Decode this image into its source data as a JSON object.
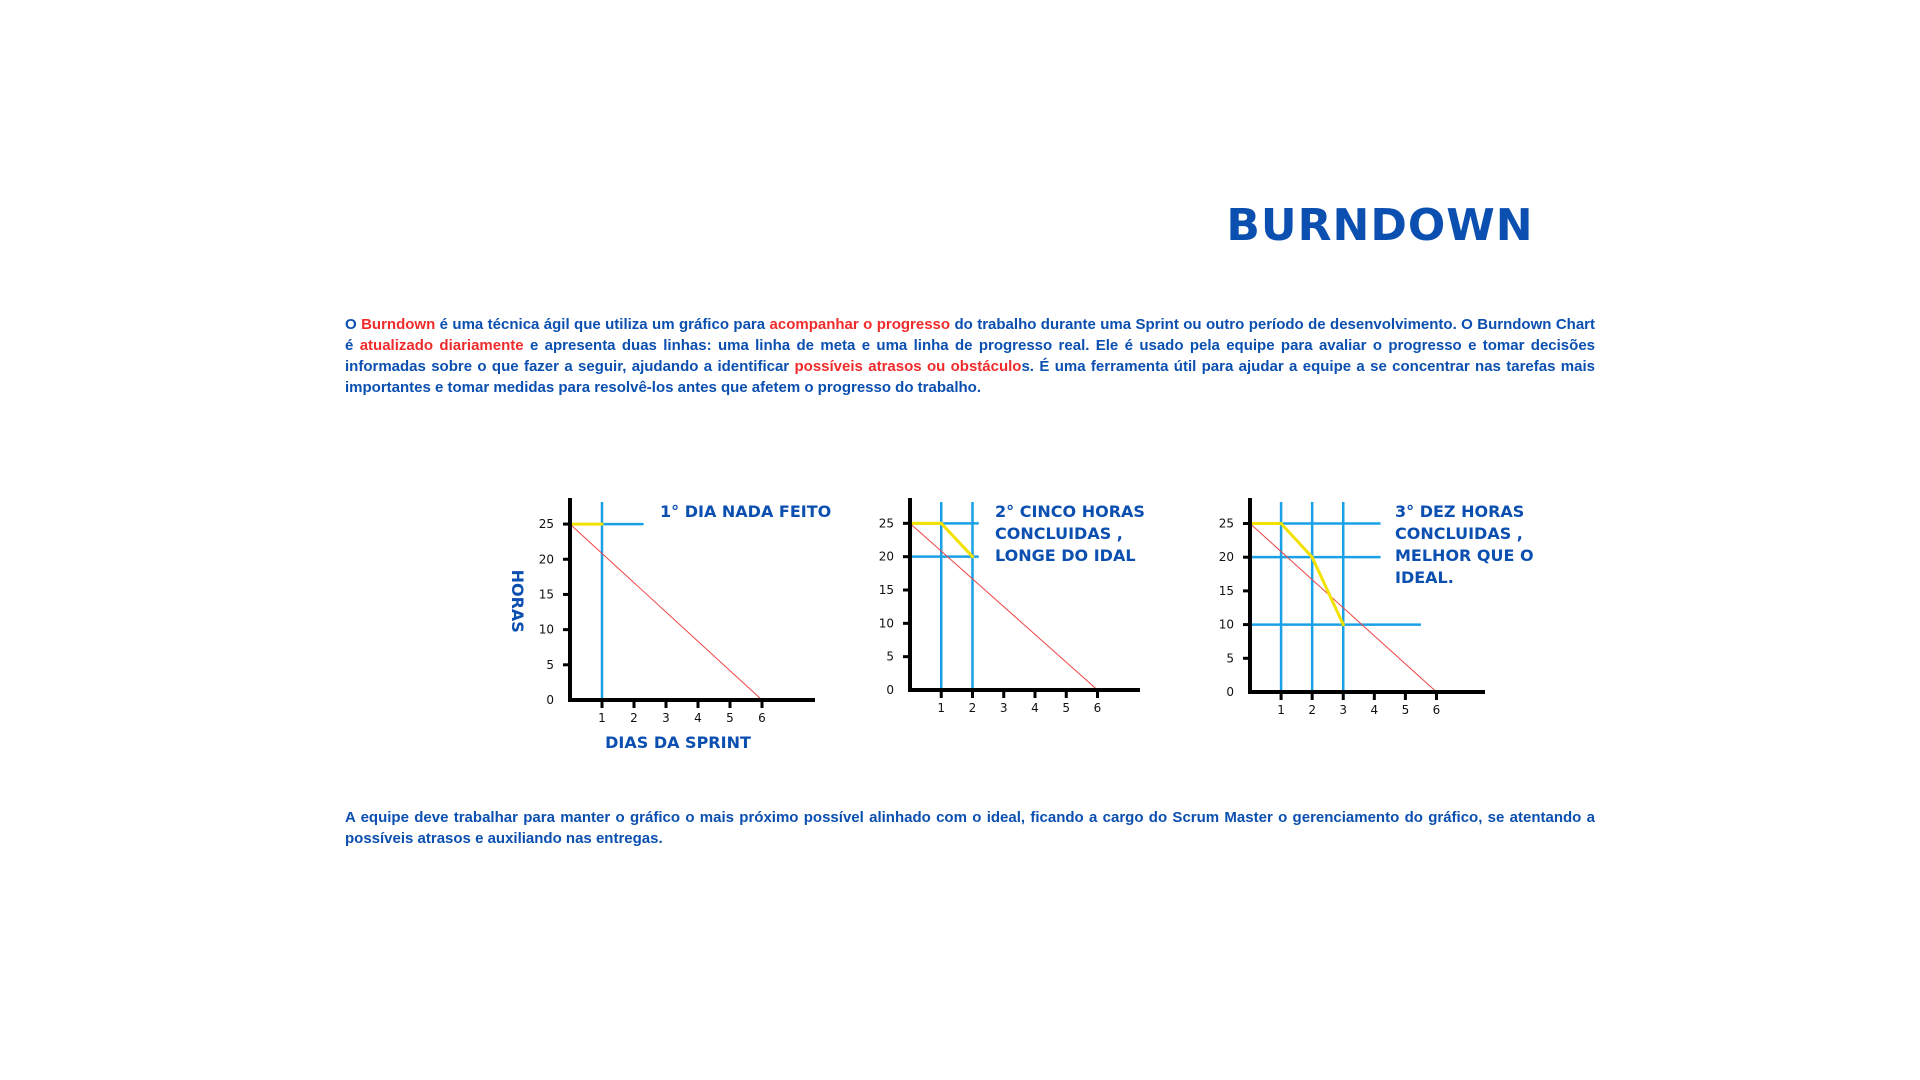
{
  "title": "BURNDOWN",
  "intro": [
    {
      "text": "O ",
      "highlight": false
    },
    {
      "text": "Burndown",
      "highlight": true
    },
    {
      "text": " é uma técnica ágil que utiliza um gráfico para ",
      "highlight": false
    },
    {
      "text": "acompanhar o progresso",
      "highlight": true
    },
    {
      "text": " do trabalho durante uma Sprint ou outro período de desenvolvimento. O Burndown Chart é ",
      "highlight": false
    },
    {
      "text": "atualizado diariamente",
      "highlight": true
    },
    {
      "text": " e apresenta duas linhas: uma linha de meta e uma linha de progresso real. Ele é usado pela equipe para avaliar o progresso e tomar decisões informadas sobre o que fazer a seguir, ajudando a identificar ",
      "highlight": false
    },
    {
      "text": "possíveis atrasos ou obstáculo",
      "highlight": true
    },
    {
      "text": "s. É uma ferramenta útil para ajudar a equipe a se concentrar nas tarefas mais importantes e tomar medidas para resolvê-los antes que afetem o progresso do trabalho.",
      "highlight": false
    }
  ],
  "outro": "A equipe deve trabalhar para manter o gráfico o mais próximo possível alinhado com o ideal, ficando a cargo do Scrum Master o gerenciamento do gráfico, se atentando a possíveis atrasos e auxiliando nas entregas.",
  "colors": {
    "text_blue": "#0b4fb0",
    "highlight_red": "#ef2b2b",
    "guide_blue": "#1aa0e6",
    "actual_yellow": "#f3e200",
    "ideal_red": "#ef4444",
    "axis_black": "#000000"
  },
  "chart_data": [
    {
      "type": "line",
      "caption": [
        "1° DIA NADA FEITO"
      ],
      "xlabel": "DIAS DA SPRINT",
      "ylabel": "HORAS",
      "x_ticks": [
        "1",
        "2",
        "3",
        "4",
        "5",
        "6"
      ],
      "y_ticks": [
        "0",
        "5",
        "10",
        "15",
        "20",
        "25"
      ],
      "xlim": [
        0,
        7.5
      ],
      "ylim": [
        0,
        27
      ],
      "series": [
        {
          "role": "ideal",
          "points": [
            [
              0,
              25
            ],
            [
              6,
              0
            ]
          ]
        },
        {
          "role": "actual",
          "points": [
            [
              0,
              25
            ],
            [
              1,
              25
            ]
          ]
        }
      ],
      "guides": {
        "x": [
          1
        ],
        "y": [
          {
            "y": 25,
            "to_x": 2.3
          }
        ]
      }
    },
    {
      "type": "line",
      "caption": [
        "2° CINCO HORAS",
        "CONCLUIDAS ,",
        "LONGE DO IDAL"
      ],
      "xlabel": "",
      "ylabel": "",
      "x_ticks": [
        "1",
        "2",
        "3",
        "4",
        "5",
        "6"
      ],
      "y_ticks": [
        "0",
        "5",
        "10",
        "15",
        "20",
        "25"
      ],
      "xlim": [
        0,
        7.2
      ],
      "ylim": [
        0,
        27
      ],
      "series": [
        {
          "role": "ideal",
          "points": [
            [
              0,
              25
            ],
            [
              6,
              0
            ]
          ]
        },
        {
          "role": "actual",
          "points": [
            [
              0,
              25
            ],
            [
              1,
              25
            ],
            [
              2,
              20
            ]
          ]
        }
      ],
      "guides": {
        "x": [
          1,
          2
        ],
        "y": [
          {
            "y": 25,
            "to_x": 2.2
          },
          {
            "y": 20,
            "to_x": 2.2
          }
        ]
      }
    },
    {
      "type": "line",
      "caption": [
        "3° DEZ HORAS",
        "CONCLUIDAS ,",
        "MELHOR QUE O",
        "IDEAL."
      ],
      "xlabel": "",
      "ylabel": "",
      "x_ticks": [
        "1",
        "2",
        "3",
        "4",
        "5",
        "6"
      ],
      "y_ticks": [
        "0",
        "5",
        "10",
        "15",
        "20",
        "25"
      ],
      "xlim": [
        0,
        7.4
      ],
      "ylim": [
        0,
        27
      ],
      "series": [
        {
          "role": "ideal",
          "points": [
            [
              0,
              25
            ],
            [
              6,
              0
            ]
          ]
        },
        {
          "role": "actual",
          "points": [
            [
              0,
              25
            ],
            [
              1,
              25
            ],
            [
              2,
              20
            ],
            [
              3,
              10
            ]
          ]
        }
      ],
      "guides": {
        "x": [
          1,
          2,
          3
        ],
        "y": [
          {
            "y": 25,
            "to_x": 4.2
          },
          {
            "y": 20,
            "to_x": 4.2
          },
          {
            "y": 10,
            "to_x": 5.5
          }
        ]
      }
    }
  ]
}
